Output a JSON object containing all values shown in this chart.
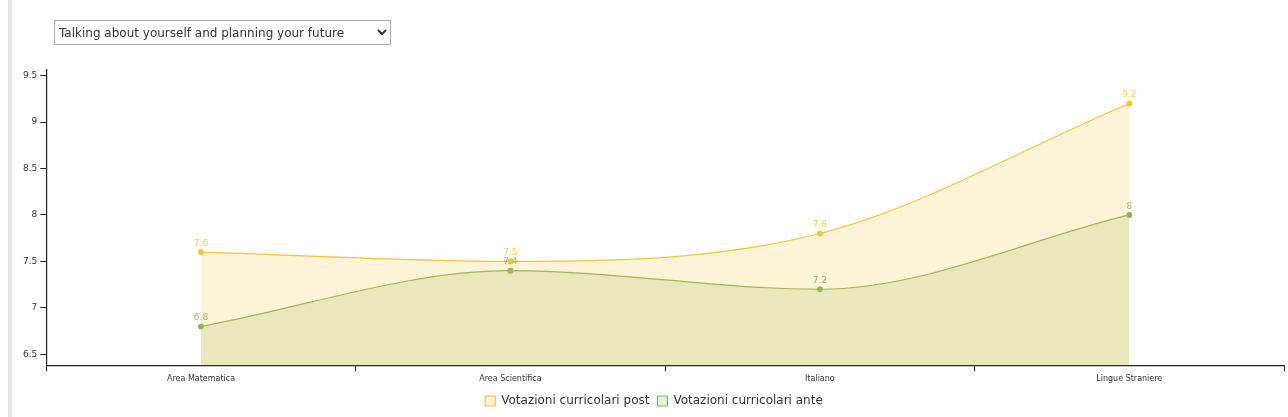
{
  "chart_data": {
    "type": "area",
    "title": "Talking about yourself and planning your future",
    "categories": [
      "Area Matematica",
      "Area Scientifica",
      "Italiano",
      "Lingue Straniere"
    ],
    "series": [
      {
        "name": "Votazioni curricolari ante",
        "color": "#8ab35e",
        "values": [
          6.8,
          7.4,
          7.2,
          8
        ]
      },
      {
        "name": "Votazioni curricolari post",
        "color": "#f6c236",
        "values": [
          7.6,
          7.5,
          7.8,
          9.2
        ]
      }
    ],
    "ylim": [
      6.38,
      9.56
    ],
    "yticks": [
      6.5,
      7,
      7.5,
      8,
      8.5,
      9,
      9.5
    ],
    "data_labels": true,
    "legend": "bottom",
    "marker": "circle",
    "grid": false
  }
}
